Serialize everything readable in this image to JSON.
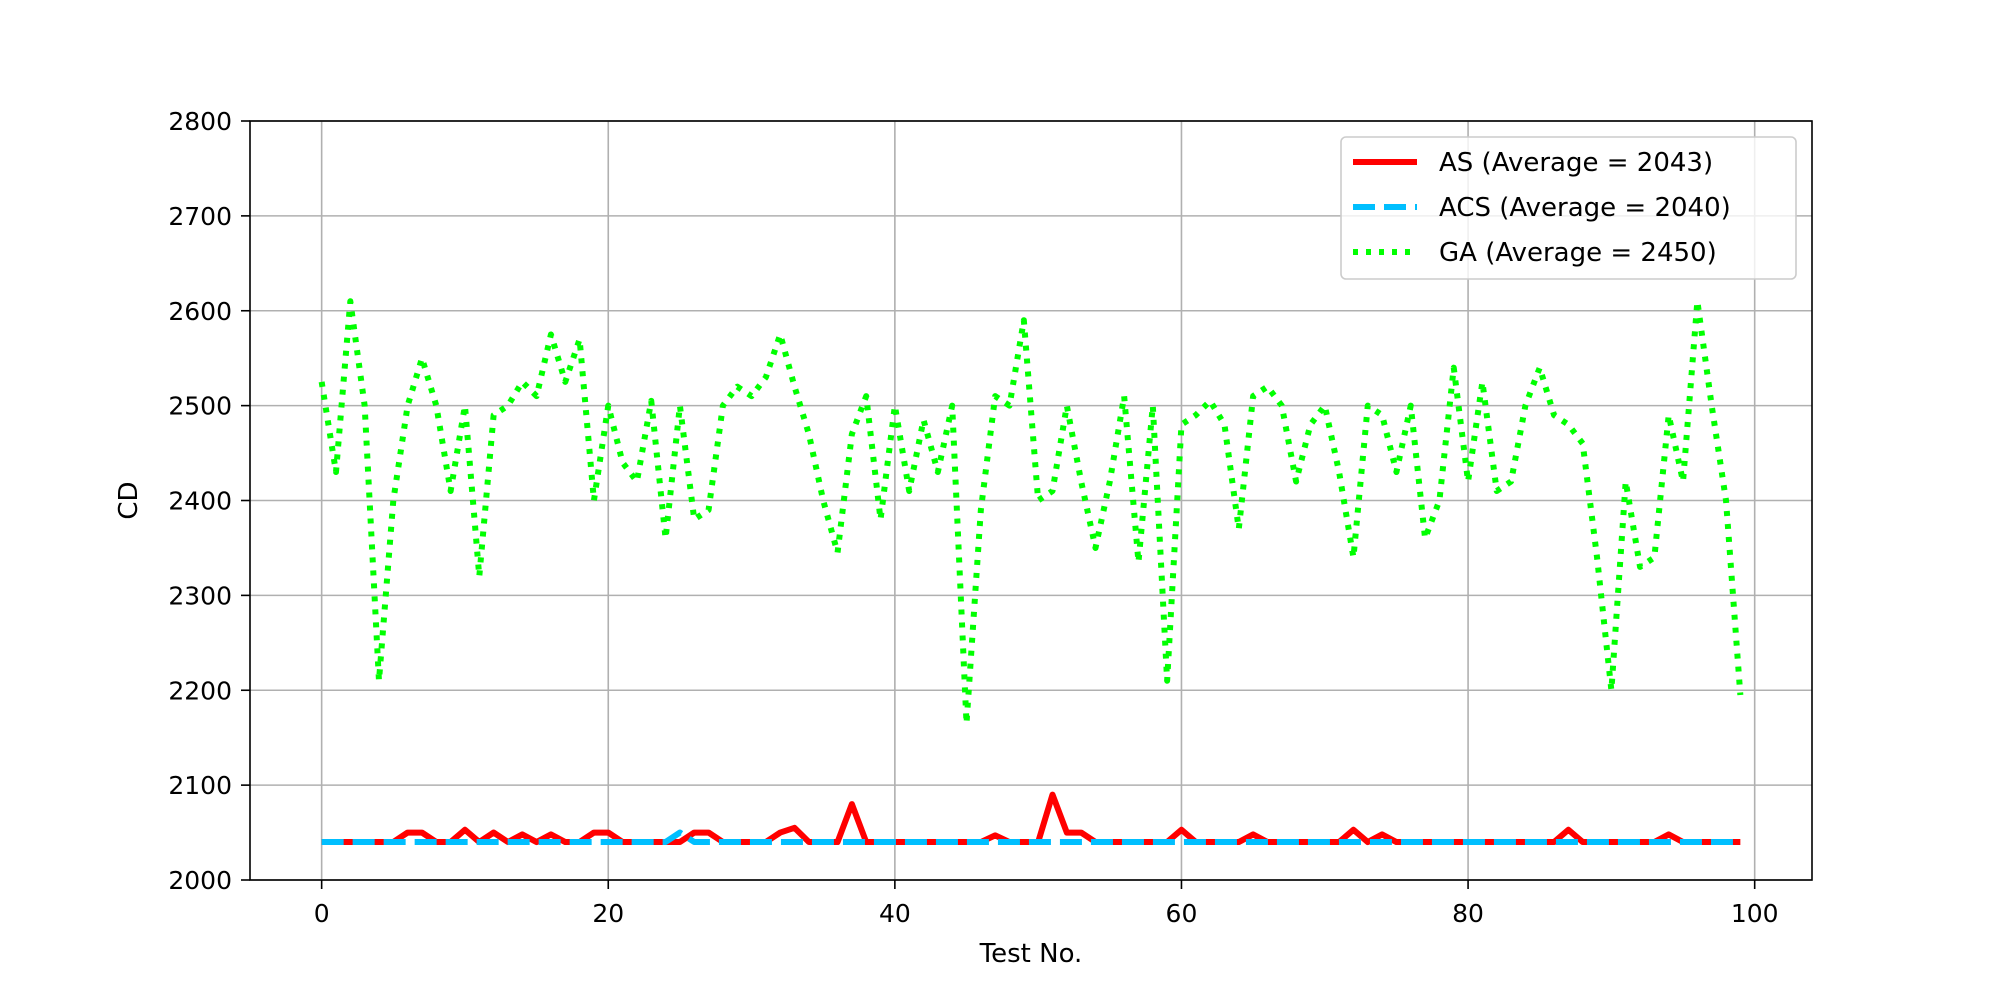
{
  "chart_data": {
    "type": "line",
    "xlabel": "Test No.",
    "ylabel": "CD",
    "xlim": [
      -5,
      104
    ],
    "ylim": [
      2000,
      2800
    ],
    "xticks": [
      0,
      20,
      40,
      60,
      80,
      100
    ],
    "yticks": [
      2000,
      2100,
      2200,
      2300,
      2400,
      2500,
      2600,
      2700,
      2800
    ],
    "grid": true,
    "legend_position": "top-right",
    "x": [
      0,
      1,
      2,
      3,
      4,
      5,
      6,
      7,
      8,
      9,
      10,
      11,
      12,
      13,
      14,
      15,
      16,
      17,
      18,
      19,
      20,
      21,
      22,
      23,
      24,
      25,
      26,
      27,
      28,
      29,
      30,
      31,
      32,
      33,
      34,
      35,
      36,
      37,
      38,
      39,
      40,
      41,
      42,
      43,
      44,
      45,
      46,
      47,
      48,
      49,
      50,
      51,
      52,
      53,
      54,
      55,
      56,
      57,
      58,
      59,
      60,
      61,
      62,
      63,
      64,
      65,
      66,
      67,
      68,
      69,
      70,
      71,
      72,
      73,
      74,
      75,
      76,
      77,
      78,
      79,
      80,
      81,
      82,
      83,
      84,
      85,
      86,
      87,
      88,
      89,
      90,
      91,
      92,
      93,
      94,
      95,
      96,
      97,
      98,
      99
    ],
    "series": [
      {
        "name": "AS (Average = 2043)",
        "color": "#ff0000",
        "style": "solid",
        "values": [
          2040,
          2040,
          2040,
          2040,
          2040,
          2040,
          2050,
          2050,
          2040,
          2040,
          2053,
          2040,
          2050,
          2040,
          2048,
          2040,
          2048,
          2040,
          2040,
          2050,
          2050,
          2040,
          2040,
          2040,
          2040,
          2040,
          2050,
          2050,
          2040,
          2040,
          2040,
          2040,
          2050,
          2055,
          2040,
          2040,
          2040,
          2080,
          2040,
          2040,
          2040,
          2040,
          2040,
          2040,
          2040,
          2040,
          2040,
          2047,
          2040,
          2040,
          2040,
          2090,
          2050,
          2050,
          2040,
          2040,
          2040,
          2040,
          2040,
          2040,
          2053,
          2040,
          2040,
          2040,
          2040,
          2048,
          2040,
          2040,
          2040,
          2040,
          2040,
          2040,
          2053,
          2040,
          2048,
          2040,
          2040,
          2040,
          2040,
          2040,
          2040,
          2040,
          2040,
          2040,
          2040,
          2040,
          2040,
          2053,
          2040,
          2040,
          2040,
          2040,
          2040,
          2040,
          2048,
          2040,
          2040,
          2040,
          2040,
          2040
        ]
      },
      {
        "name": "ACS (Average = 2040)",
        "color": "#00bfff",
        "style": "dashed",
        "values": [
          2040,
          2040,
          2040,
          2040,
          2040,
          2040,
          2040,
          2040,
          2040,
          2040,
          2040,
          2040,
          2040,
          2040,
          2040,
          2040,
          2040,
          2040,
          2040,
          2040,
          2040,
          2040,
          2040,
          2040,
          2040,
          2050,
          2040,
          2040,
          2040,
          2040,
          2040,
          2040,
          2040,
          2040,
          2040,
          2040,
          2040,
          2040,
          2040,
          2040,
          2040,
          2040,
          2040,
          2040,
          2040,
          2040,
          2040,
          2040,
          2040,
          2040,
          2040,
          2040,
          2040,
          2040,
          2040,
          2040,
          2040,
          2040,
          2040,
          2040,
          2040,
          2040,
          2040,
          2040,
          2040,
          2040,
          2040,
          2040,
          2040,
          2040,
          2040,
          2040,
          2040,
          2040,
          2040,
          2040,
          2040,
          2040,
          2040,
          2040,
          2040,
          2040,
          2040,
          2040,
          2040,
          2040,
          2040,
          2040,
          2040,
          2040,
          2040,
          2040,
          2040,
          2040,
          2040,
          2040,
          2040,
          2040,
          2040,
          2040
        ]
      },
      {
        "name": "GA (Average = 2450)",
        "color": "#00ff00",
        "style": "dotted",
        "values": [
          2525,
          2430,
          2610,
          2500,
          2210,
          2400,
          2500,
          2550,
          2500,
          2410,
          2500,
          2320,
          2490,
          2500,
          2525,
          2510,
          2575,
          2525,
          2570,
          2400,
          2500,
          2440,
          2420,
          2505,
          2360,
          2500,
          2380,
          2390,
          2500,
          2520,
          2510,
          2530,
          2575,
          2520,
          2470,
          2400,
          2345,
          2470,
          2510,
          2380,
          2500,
          2410,
          2485,
          2430,
          2500,
          2165,
          2390,
          2510,
          2500,
          2590,
          2400,
          2410,
          2500,
          2420,
          2350,
          2420,
          2510,
          2335,
          2500,
          2210,
          2480,
          2490,
          2505,
          2480,
          2370,
          2510,
          2520,
          2500,
          2420,
          2480,
          2500,
          2430,
          2340,
          2500,
          2490,
          2430,
          2500,
          2360,
          2400,
          2540,
          2420,
          2525,
          2410,
          2420,
          2500,
          2540,
          2490,
          2480,
          2460,
          2340,
          2200,
          2420,
          2330,
          2340,
          2490,
          2420,
          2610,
          2500,
          2400,
          2195
        ]
      }
    ]
  }
}
